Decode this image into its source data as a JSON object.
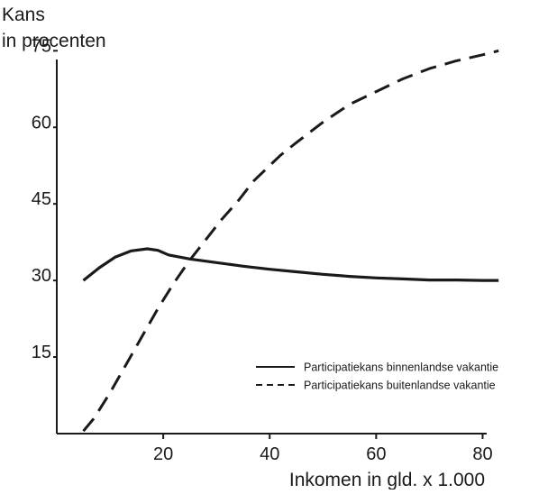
{
  "chart_data": {
    "type": "line",
    "title": "",
    "ylabel": [
      "Kans",
      "in procenten"
    ],
    "xlabel": "Inkomen in gld. x 1.000",
    "xlim": [
      0,
      85
    ],
    "ylim": [
      0,
      80
    ],
    "xticks": [
      20,
      40,
      60,
      80
    ],
    "xtick_labels": [
      "20",
      "40",
      "60",
      "80"
    ],
    "yticks": [
      15,
      30,
      45,
      60,
      75
    ],
    "ytick_labels": [
      "15",
      "30",
      "45",
      "60",
      "75"
    ],
    "grid": false,
    "legend_position": "right",
    "series": [
      {
        "name": "Participatiekans binnenlandse vakantie",
        "style": "solid",
        "color": "#1a1a1a",
        "x": [
          5,
          8,
          11,
          14,
          17,
          19,
          21,
          25,
          30,
          35,
          40,
          45,
          50,
          55,
          60,
          65,
          70,
          75,
          80,
          83
        ],
        "y": [
          30,
          32.5,
          34.6,
          35.8,
          36.2,
          35.9,
          35,
          34.2,
          33.5,
          32.8,
          32.2,
          31.7,
          31.2,
          30.8,
          30.5,
          30.3,
          30.1,
          30.1,
          30,
          30
        ]
      },
      {
        "name": "Participatiekans buitenlandse vakantie",
        "style": "dashed",
        "color": "#1a1a1a",
        "x": [
          5,
          7,
          10,
          13,
          16,
          19,
          22,
          25,
          28,
          31,
          34,
          37,
          40,
          42,
          45,
          50,
          55,
          60,
          65,
          70,
          75,
          80,
          83
        ],
        "y": [
          0.5,
          3,
          8,
          13.5,
          19,
          24.5,
          29.5,
          34,
          38,
          42,
          45.5,
          49.5,
          52.5,
          54.5,
          57,
          61,
          64.5,
          67,
          69.5,
          71.5,
          73,
          74.2,
          75
        ]
      }
    ]
  }
}
